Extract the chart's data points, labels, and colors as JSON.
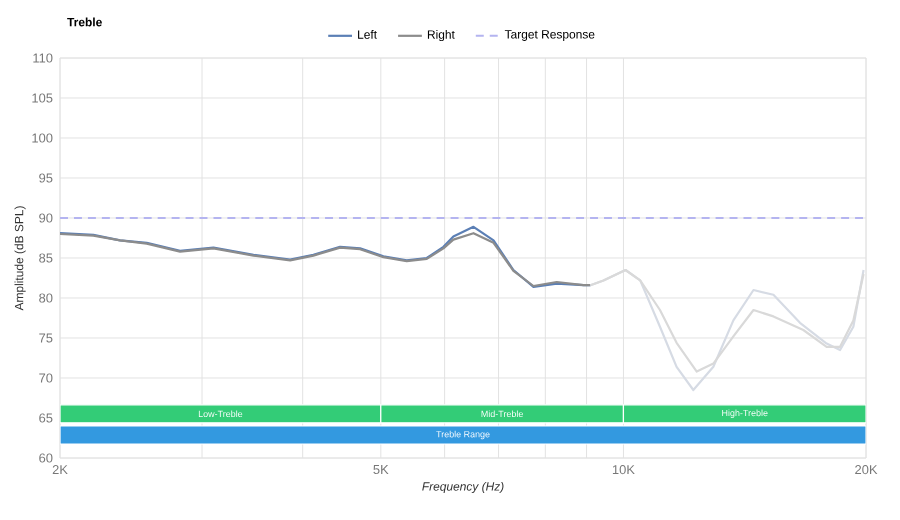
{
  "chart_data": {
    "type": "line",
    "title": "Treble",
    "xlabel": "Frequency (Hz)",
    "ylabel": "Amplitude (dB SPL)",
    "log": "x",
    "grid": true,
    "legend": "top",
    "line_style": "solid",
    "marker": "none",
    "xlim": [
      2000,
      20000
    ],
    "ylim": [
      60,
      110
    ],
    "xticks": [
      {
        "value": 2000,
        "label": "2K"
      },
      {
        "value": 3000,
        "label": null
      },
      {
        "value": 4000,
        "label": null
      },
      {
        "value": 5000,
        "label": "5K"
      },
      {
        "value": 6000,
        "label": null
      },
      {
        "value": 7000,
        "label": null
      },
      {
        "value": 8000,
        "label": null
      },
      {
        "value": 9000,
        "label": null
      },
      {
        "value": 10000,
        "label": "10K"
      },
      {
        "value": 20000,
        "label": "20K"
      }
    ],
    "yticks": [
      60,
      65,
      70,
      75,
      80,
      85,
      90,
      95,
      100,
      105,
      110
    ],
    "series": [
      {
        "name": "Left",
        "color": "#5b7fb5",
        "x": [
          2000,
          2200,
          2374,
          2562,
          2818,
          3100,
          3476,
          3860,
          4124,
          4451,
          4713,
          5038,
          5385,
          5702,
          5980,
          6152,
          6516,
          6900,
          7304,
          7734,
          8265,
          8922,
          9100
        ],
        "values": [
          88.1,
          87.9,
          87.2,
          86.9,
          85.9,
          86.3,
          85.4,
          84.8,
          85.4,
          86.4,
          86.2,
          85.2,
          84.7,
          85.0,
          86.4,
          87.7,
          88.9,
          87.2,
          83.5,
          81.4,
          81.8,
          81.6,
          81.6
        ]
      },
      {
        "name": "Right",
        "color": "#8c8c8c",
        "x": [
          2000,
          2200,
          2374,
          2562,
          2818,
          3100,
          3476,
          3860,
          4124,
          4451,
          4713,
          5038,
          5385,
          5702,
          5980,
          6152,
          6516,
          6900,
          7304,
          7734,
          8265,
          8922,
          9100
        ],
        "values": [
          88.0,
          87.8,
          87.2,
          86.8,
          85.8,
          86.2,
          85.3,
          84.7,
          85.3,
          86.3,
          86.1,
          85.1,
          84.6,
          84.9,
          86.2,
          87.3,
          88.1,
          86.9,
          83.4,
          81.5,
          82.0,
          81.6,
          81.6
        ]
      },
      {
        "color": "#d6dbe4",
        "x": [
          9100,
          9446,
          10060,
          10490,
          11100,
          11640,
          12210,
          12930,
          13690,
          14500,
          15350,
          16560,
          17870,
          18570,
          19290,
          19860
        ],
        "values": [
          81.6,
          82.2,
          83.5,
          82.2,
          76.4,
          71.4,
          68.5,
          71.4,
          77.2,
          81.0,
          80.4,
          76.9,
          74.3,
          73.5,
          76.4,
          83.5
        ]
      },
      {
        "color": "#d9d9d9",
        "x": [
          9100,
          9446,
          10060,
          10490,
          11100,
          11640,
          12330,
          12930,
          13690,
          14500,
          15350,
          16720,
          17870,
          18570,
          19290,
          19860
        ],
        "values": [
          81.6,
          82.2,
          83.5,
          82.2,
          78.5,
          74.4,
          70.8,
          71.8,
          75.2,
          78.5,
          77.7,
          76.0,
          73.9,
          73.9,
          77.2,
          83.0
        ]
      }
    ],
    "ref_lines": [
      {
        "axis": "y",
        "value": 90,
        "label": "Target Response",
        "color": "#b4b4f0",
        "line_style": "dashed"
      }
    ],
    "bands": [
      {
        "axis": "x",
        "from": 2000,
        "to": 5000,
        "label": "Low-Treble",
        "color": "#33cc77"
      },
      {
        "axis": "x",
        "from": 5000,
        "to": 10000,
        "label": "Mid-Treble",
        "color": "#33cc77"
      },
      {
        "axis": "x",
        "from": 10000,
        "to": 20000,
        "label": "High-Treble",
        "color": "#33cc77"
      },
      {
        "axis": "x",
        "from": 2000,
        "to": 20000,
        "label": "Treble Range",
        "color": "#3399e0"
      }
    ]
  }
}
